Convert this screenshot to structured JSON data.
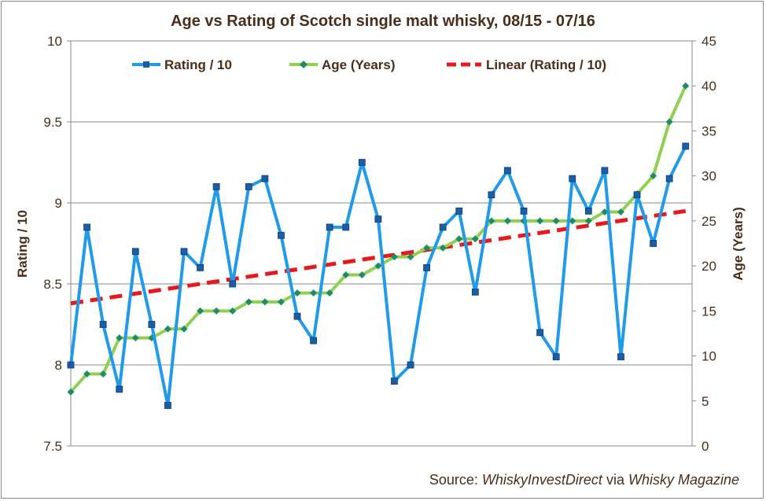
{
  "chart_data": {
    "type": "line",
    "title": "Age vs Rating of Scotch single malt whisky, 08/15 - 07/16",
    "source": {
      "prefix": "Source: ",
      "primary": "WhiskyInvestDirect",
      "connector": " via ",
      "secondary": "Whisky Magazine"
    },
    "y_left": {
      "label": "Rating / 10",
      "ylim": [
        7.5,
        10
      ],
      "ticks": [
        "7.5",
        "8",
        "8.5",
        "9",
        "9.5",
        "10"
      ],
      "tick_values": [
        7.5,
        8,
        8.5,
        9,
        9.5,
        10
      ]
    },
    "y_right": {
      "label": "Age (Years)",
      "ylim": [
        0,
        45
      ],
      "ticks": [
        "0",
        "5",
        "10",
        "15",
        "20",
        "25",
        "30",
        "35",
        "40",
        "45"
      ],
      "tick_values": [
        0,
        5,
        10,
        15,
        20,
        25,
        30,
        35,
        40,
        45
      ]
    },
    "grid": true,
    "legend_position": "top",
    "series": [
      {
        "name": "Rating / 10",
        "axis": "left",
        "color": "#1f9bea",
        "marker": "square",
        "values": [
          8.0,
          8.85,
          8.25,
          7.85,
          8.7,
          8.25,
          7.75,
          8.7,
          8.6,
          9.1,
          8.5,
          9.1,
          9.15,
          8.8,
          8.3,
          8.15,
          8.85,
          8.85,
          9.25,
          8.9,
          7.9,
          8.0,
          8.6,
          8.85,
          8.95,
          8.45,
          9.05,
          9.2,
          8.95,
          8.2,
          8.05,
          9.15,
          8.95,
          9.2,
          8.05,
          9.05,
          8.75,
          9.15,
          9.35
        ]
      },
      {
        "name": "Age (Years)",
        "axis": "right",
        "color": "#8fd14f",
        "marker_color": "#1e8c64",
        "marker": "diamond",
        "values": [
          6,
          8,
          8,
          12,
          12,
          12,
          13,
          13,
          15,
          15,
          15,
          16,
          16,
          16,
          17,
          17,
          17,
          19,
          19,
          20,
          21,
          21,
          22,
          22,
          23,
          23,
          25,
          25,
          25,
          25,
          25,
          25,
          25,
          26,
          26,
          28,
          30,
          36,
          40
        ]
      },
      {
        "name": "Linear (Rating / 10)",
        "axis": "left",
        "color": "#e8191c",
        "style": "dashed",
        "values": [
          8.38,
          8.95
        ]
      }
    ]
  }
}
